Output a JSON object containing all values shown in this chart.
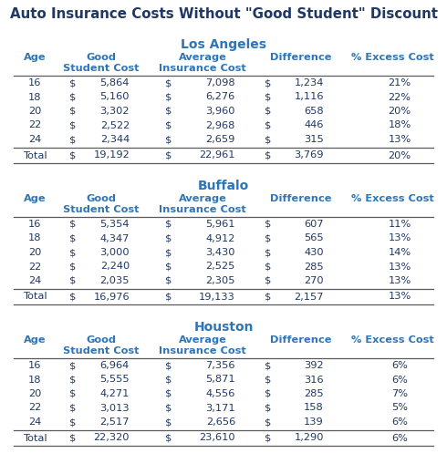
{
  "title": "Auto Insurance Costs Without \"Good Student\" Discount",
  "title_color": "#1F3864",
  "header_color": "#2E75B6",
  "text_color": "#1F3864",
  "line_color": "#5A5A5A",
  "cities": [
    "Los Angeles",
    "Buffalo",
    "Houston"
  ],
  "data": {
    "Los Angeles": {
      "rows": [
        [
          "16",
          "$",
          "5,864",
          "$",
          "7,098",
          "$",
          "1,234",
          "21%"
        ],
        [
          "18",
          "$",
          "5,160",
          "$",
          "6,276",
          "$",
          "1,116",
          "22%"
        ],
        [
          "20",
          "$",
          "3,302",
          "$",
          "3,960",
          "$",
          "658",
          "20%"
        ],
        [
          "22",
          "$",
          "2,522",
          "$",
          "2,968",
          "$",
          "446",
          "18%"
        ],
        [
          "24",
          "$",
          "2,344",
          "$",
          "2,659",
          "$",
          "315",
          "13%"
        ]
      ],
      "total": [
        "Total",
        "$",
        "19,192",
        "$",
        "22,961",
        "$",
        "3,769",
        "20%"
      ]
    },
    "Buffalo": {
      "rows": [
        [
          "16",
          "$",
          "5,354",
          "$",
          "5,961",
          "$",
          "607",
          "11%"
        ],
        [
          "18",
          "$",
          "4,347",
          "$",
          "4,912",
          "$",
          "565",
          "13%"
        ],
        [
          "20",
          "$",
          "3,000",
          "$",
          "3,430",
          "$",
          "430",
          "14%"
        ],
        [
          "22",
          "$",
          "2,240",
          "$",
          "2,525",
          "$",
          "285",
          "13%"
        ],
        [
          "24",
          "$",
          "2,035",
          "$",
          "2,305",
          "$",
          "270",
          "13%"
        ]
      ],
      "total": [
        "Total",
        "$",
        "16,976",
        "$",
        "19,133",
        "$",
        "2,157",
        "13%"
      ]
    },
    "Houston": {
      "rows": [
        [
          "16",
          "$",
          "6,964",
          "$",
          "7,356",
          "$",
          "392",
          "6%"
        ],
        [
          "18",
          "$",
          "5,555",
          "$",
          "5,871",
          "$",
          "316",
          "6%"
        ],
        [
          "20",
          "$",
          "4,271",
          "$",
          "4,556",
          "$",
          "285",
          "7%"
        ],
        [
          "22",
          "$",
          "3,013",
          "$",
          "3,171",
          "$",
          "158",
          "5%"
        ],
        [
          "24",
          "$",
          "2,517",
          "$",
          "2,656",
          "$",
          "139",
          "6%"
        ]
      ],
      "total": [
        "Total",
        "$",
        "22,320",
        "$",
        "23,610",
        "$",
        "1,290",
        "6%"
      ]
    }
  },
  "background_color": "#ffffff",
  "fig_width": 4.9,
  "fig_height": 5.2,
  "dpi": 100
}
